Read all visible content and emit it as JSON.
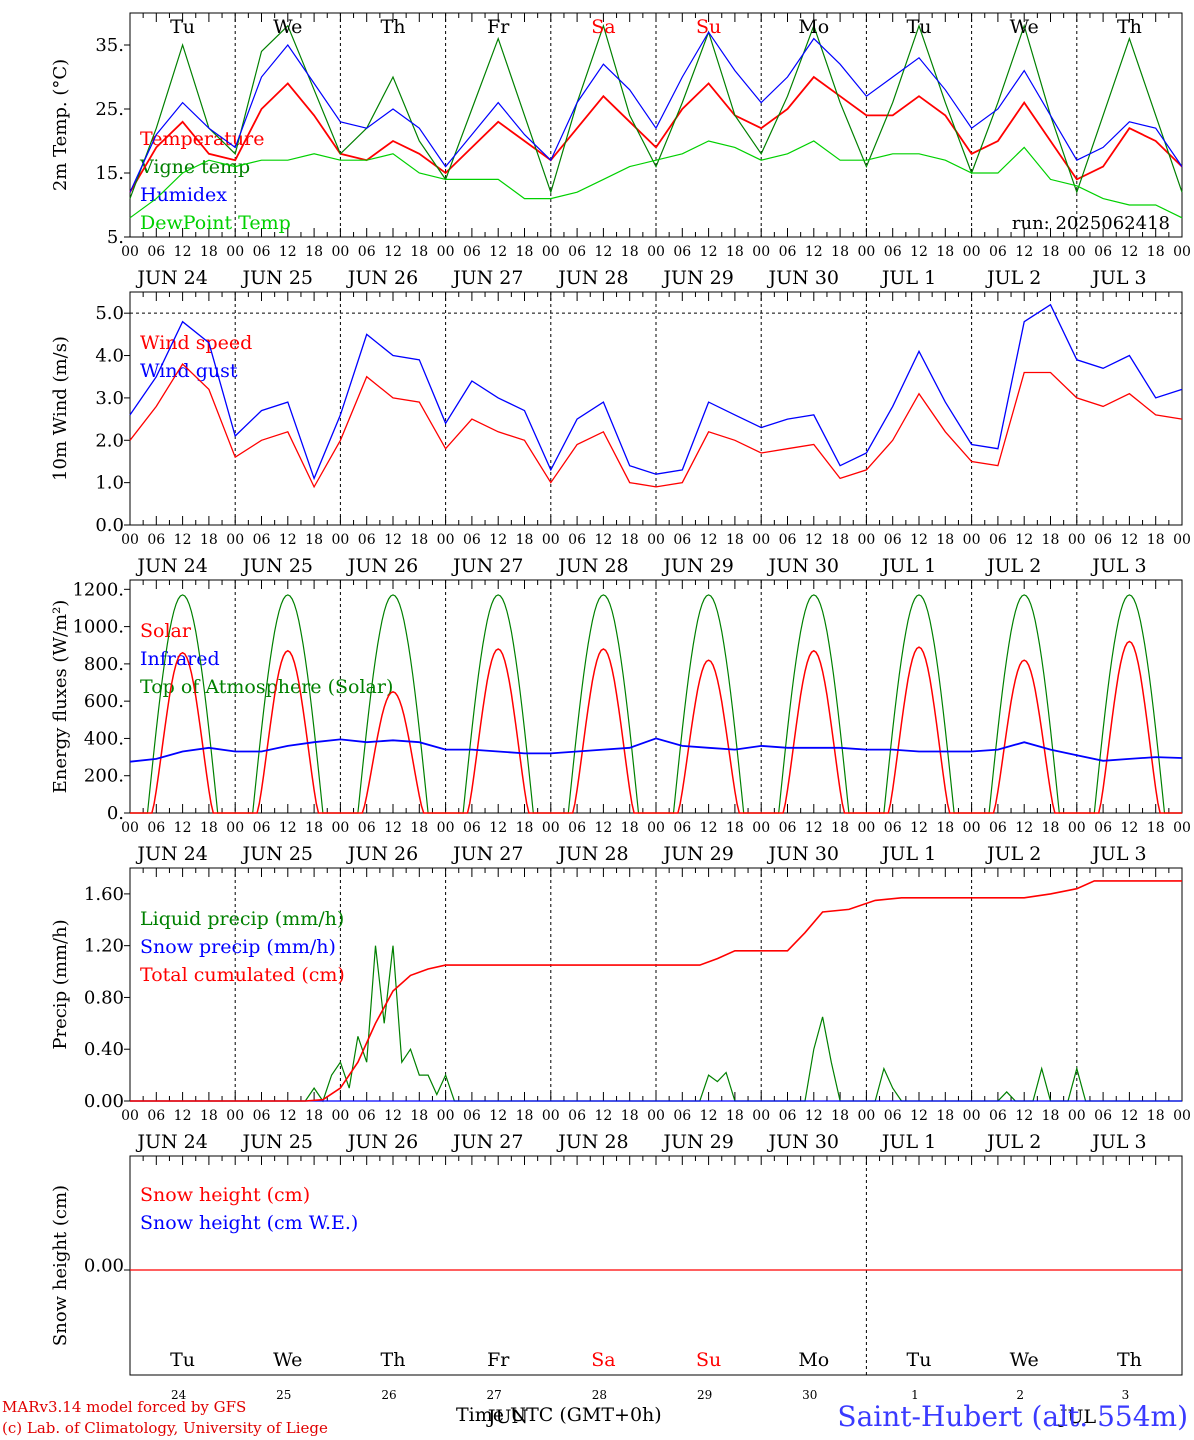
{
  "footer": {
    "model": "MARv3.14 model forced by GFS",
    "copyright": "(c) Lab. of Climatology, University of Liege",
    "station": "Saint-Hubert (alt. 554m)",
    "xaxis_title": "Time UTC (GMT+0h)"
  },
  "day_labels": [
    "Tu",
    "We",
    "Th",
    "Fr",
    "Sa",
    "Su",
    "Mo",
    "Tu",
    "We",
    "Th"
  ],
  "weekend_color": "#ff0000",
  "date_labels": [
    "JUN 24",
    "JUN 25",
    "JUN 26",
    "JUN 27",
    "JUN 28",
    "JUN 29",
    "JUN 30",
    "JUL  1",
    "JUL  2",
    "JUL  3"
  ],
  "bottom_day_numbers": [
    "24",
    "25",
    "26",
    "27",
    "28",
    "29",
    "30",
    "1",
    "2",
    "3"
  ],
  "bottom_month_labels": [
    "JUN",
    "JUL"
  ],
  "hour_ticks": [
    "00",
    "06",
    "12",
    "18"
  ],
  "colors": {
    "red": "#ff0000",
    "green": "#008000",
    "blue": "#0000ff",
    "lightgreen": "#00d000"
  },
  "chart_data": [
    {
      "type": "line",
      "ylabel": "2m Temp. (°C)",
      "ylim": [
        5,
        40
      ],
      "yticks": [
        "5.",
        "15.",
        "25.",
        "35."
      ],
      "annotation": "run: 2025062418",
      "x_hours": [
        0,
        6,
        12,
        18,
        24,
        30,
        36,
        42,
        48,
        54,
        60,
        66,
        72,
        78,
        84,
        90,
        96,
        102,
        108,
        114,
        120,
        126,
        132,
        138,
        144,
        150,
        156,
        162,
        168,
        174,
        180,
        186,
        192,
        198,
        204,
        210,
        216,
        222,
        228,
        234,
        240
      ],
      "series": [
        {
          "name": "Temperature",
          "color": "red",
          "values": [
            12,
            19,
            23,
            18,
            17,
            25,
            29,
            24,
            18,
            17,
            20,
            18,
            15,
            19,
            23,
            20,
            17,
            22,
            27,
            23,
            19,
            25,
            29,
            24,
            22,
            25,
            30,
            27,
            24,
            24,
            27,
            24,
            18,
            20,
            26,
            20,
            14,
            16,
            22,
            20,
            16
          ]
        },
        {
          "name": "Vigne temp",
          "color": "green",
          "values": [
            11,
            22,
            35,
            22,
            18,
            34,
            38,
            28,
            18,
            22,
            30,
            20,
            14,
            25,
            36,
            24,
            12,
            26,
            38,
            24,
            16,
            26,
            37,
            24,
            18,
            27,
            38,
            26,
            16,
            26,
            38,
            26,
            15,
            26,
            38,
            24,
            12,
            24,
            36,
            24,
            12
          ]
        },
        {
          "name": "Humidex",
          "color": "blue",
          "values": [
            12,
            21,
            26,
            22,
            19,
            30,
            35,
            29,
            23,
            22,
            25,
            22,
            16,
            21,
            26,
            21,
            17,
            26,
            32,
            28,
            22,
            30,
            37,
            31,
            26,
            30,
            36,
            32,
            27,
            30,
            33,
            28,
            22,
            25,
            31,
            24,
            17,
            19,
            23,
            22,
            16
          ]
        },
        {
          "name": "DewPoint Temp",
          "color": "lightgreen",
          "values": [
            8,
            11,
            15,
            17,
            16,
            17,
            17,
            18,
            17,
            17,
            18,
            15,
            14,
            14,
            14,
            11,
            11,
            12,
            14,
            16,
            17,
            18,
            20,
            19,
            17,
            18,
            20,
            17,
            17,
            18,
            18,
            17,
            15,
            15,
            19,
            14,
            13,
            11,
            10,
            10,
            8
          ]
        }
      ]
    },
    {
      "type": "line",
      "ylabel": "10m Wind (m/s)",
      "ylim": [
        0,
        5.5
      ],
      "yticks": [
        "0.0",
        "1.0",
        "2.0",
        "3.0",
        "4.0",
        "5.0"
      ],
      "x_hours": [
        0,
        6,
        12,
        18,
        24,
        30,
        36,
        42,
        48,
        54,
        60,
        66,
        72,
        78,
        84,
        90,
        96,
        102,
        108,
        114,
        120,
        126,
        132,
        138,
        144,
        150,
        156,
        162,
        168,
        174,
        180,
        186,
        192,
        198,
        204,
        210,
        216,
        222,
        228,
        234,
        240
      ],
      "series": [
        {
          "name": "Wind speed",
          "color": "red",
          "values": [
            2.0,
            2.8,
            3.8,
            3.2,
            1.6,
            2.0,
            2.2,
            0.9,
            2.0,
            3.5,
            3.0,
            2.9,
            1.8,
            2.5,
            2.2,
            2.0,
            1.0,
            1.9,
            2.2,
            1.0,
            0.9,
            1.0,
            2.2,
            2.0,
            1.7,
            1.8,
            1.9,
            1.1,
            1.3,
            2.0,
            3.1,
            2.2,
            1.5,
            1.4,
            3.6,
            3.6,
            3.0,
            2.8,
            3.1,
            2.6,
            2.5
          ]
        },
        {
          "name": "Wind gust",
          "color": "blue",
          "values": [
            2.6,
            3.5,
            4.8,
            4.3,
            2.1,
            2.7,
            2.9,
            1.1,
            2.6,
            4.5,
            4.0,
            3.9,
            2.4,
            3.4,
            3.0,
            2.7,
            1.3,
            2.5,
            2.9,
            1.4,
            1.2,
            1.3,
            2.9,
            2.6,
            2.3,
            2.5,
            2.6,
            1.4,
            1.7,
            2.8,
            4.1,
            2.9,
            1.9,
            1.8,
            4.8,
            5.2,
            3.9,
            3.7,
            4.0,
            3.0,
            3.2
          ]
        }
      ]
    },
    {
      "type": "line",
      "ylabel": "Energy fluxes (W/m²)",
      "ylim": [
        0,
        1250
      ],
      "yticks": [
        "0.",
        "200.",
        "400.",
        "600.",
        "800.",
        "1000.",
        "1200."
      ],
      "peak_hour": 12,
      "series": [
        {
          "name": "Solar",
          "color": "red",
          "daily_peaks": [
            860,
            870,
            650,
            880,
            880,
            820,
            870,
            890,
            820,
            920
          ]
        },
        {
          "name": "Infrared",
          "color": "blue",
          "values": [
            275,
            290,
            330,
            350,
            330,
            330,
            360,
            380,
            395,
            380,
            390,
            380,
            340,
            340,
            330,
            320,
            320,
            330,
            340,
            350,
            400,
            360,
            350,
            340,
            360,
            350,
            350,
            350,
            340,
            340,
            330,
            330,
            330,
            340,
            380,
            340,
            310,
            280,
            290,
            300,
            295
          ]
        },
        {
          "name": "Top of Atmosphere (Solar)",
          "color": "green",
          "daily_peak": 1170
        }
      ],
      "x_hours_step": 6
    },
    {
      "type": "line",
      "ylabel": "Precip (mm/h)",
      "ylim": [
        0,
        1.8
      ],
      "yticks": [
        "0.00",
        "0.40",
        "0.80",
        "1.20",
        "1.60"
      ],
      "series": [
        {
          "name": "Liquid precip (mm/h)",
          "color": "green",
          "points": [
            [
              0,
              0
            ],
            [
              40,
              0
            ],
            [
              42,
              0.1
            ],
            [
              44,
              0.0
            ],
            [
              46,
              0.2
            ],
            [
              48,
              0.3
            ],
            [
              50,
              0.1
            ],
            [
              52,
              0.5
            ],
            [
              54,
              0.3
            ],
            [
              56,
              1.2
            ],
            [
              58,
              0.6
            ],
            [
              60,
              1.2
            ],
            [
              62,
              0.3
            ],
            [
              64,
              0.4
            ],
            [
              66,
              0.2
            ],
            [
              68,
              0.2
            ],
            [
              70,
              0.05
            ],
            [
              72,
              0.2
            ],
            [
              74,
              0.0
            ],
            [
              130,
              0.0
            ],
            [
              132,
              0.2
            ],
            [
              134,
              0.15
            ],
            [
              136,
              0.22
            ],
            [
              138,
              0.0
            ],
            [
              154,
              0.0
            ],
            [
              156,
              0.4
            ],
            [
              158,
              0.65
            ],
            [
              160,
              0.3
            ],
            [
              162,
              0.0
            ],
            [
              170,
              0.0
            ],
            [
              172,
              0.25
            ],
            [
              174,
              0.1
            ],
            [
              176,
              0.0
            ],
            [
              198,
              0.0
            ],
            [
              200,
              0.07
            ],
            [
              202,
              0.0
            ],
            [
              206,
              0.0
            ],
            [
              208,
              0.25
            ],
            [
              210,
              0.0
            ],
            [
              214,
              0.0
            ],
            [
              216,
              0.25
            ],
            [
              218,
              0.0
            ],
            [
              240,
              0.0
            ]
          ]
        },
        {
          "name": "Snow precip (mm/h)",
          "color": "blue",
          "points": [
            [
              0,
              0
            ],
            [
              240,
              0
            ]
          ]
        },
        {
          "name": "Total cumulated (cm)",
          "color": "red",
          "points": [
            [
              0,
              0
            ],
            [
              40,
              0
            ],
            [
              44,
              0.01
            ],
            [
              48,
              0.1
            ],
            [
              52,
              0.3
            ],
            [
              56,
              0.6
            ],
            [
              60,
              0.85
            ],
            [
              64,
              0.97
            ],
            [
              68,
              1.02
            ],
            [
              72,
              1.05
            ],
            [
              130,
              1.05
            ],
            [
              134,
              1.1
            ],
            [
              138,
              1.16
            ],
            [
              150,
              1.16
            ],
            [
              154,
              1.3
            ],
            [
              158,
              1.46
            ],
            [
              164,
              1.48
            ],
            [
              170,
              1.55
            ],
            [
              176,
              1.57
            ],
            [
              204,
              1.57
            ],
            [
              210,
              1.6
            ],
            [
              216,
              1.64
            ],
            [
              220,
              1.7
            ],
            [
              240,
              1.7
            ]
          ]
        }
      ]
    },
    {
      "type": "line",
      "ylabel": "Snow height (cm)",
      "yticks": [
        "0.00"
      ],
      "series": [
        {
          "name": "Snow height (cm)",
          "color": "red",
          "values": [
            0,
            0
          ]
        },
        {
          "name": "Snow height (cm W.E.)",
          "color": "blue",
          "values": [
            0,
            0
          ]
        }
      ]
    }
  ]
}
